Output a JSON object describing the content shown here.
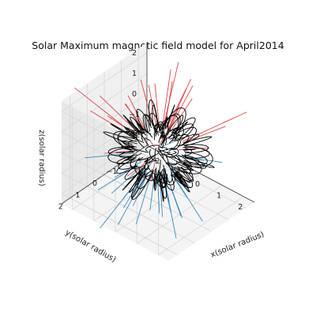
{
  "chart_data": {
    "type": "line",
    "projection": "3d",
    "title": "Solar Maximum magnetic field model for April2014",
    "xlabel": "x(solar radius)",
    "ylabel": "y(solar radius)",
    "zlabel": "z(solar radius)",
    "xlim": [
      -2.5,
      2.5
    ],
    "ylim": [
      -2.5,
      2.5
    ],
    "zlim": [
      -2.5,
      2.5
    ],
    "x_ticks": [
      "−2",
      "−1",
      "0",
      "1",
      "2"
    ],
    "y_ticks": [
      "2",
      "1",
      "0",
      "−1",
      "−2"
    ],
    "z_ticks": [
      "2",
      "1",
      "0",
      "−1",
      "−2"
    ],
    "grid": true,
    "series": [
      {
        "kind": "closed",
        "color": "#000000"
      },
      {
        "kind": "open-north",
        "color": "#d62728"
      },
      {
        "kind": "open-south",
        "color": "#1f77b4"
      }
    ]
  }
}
